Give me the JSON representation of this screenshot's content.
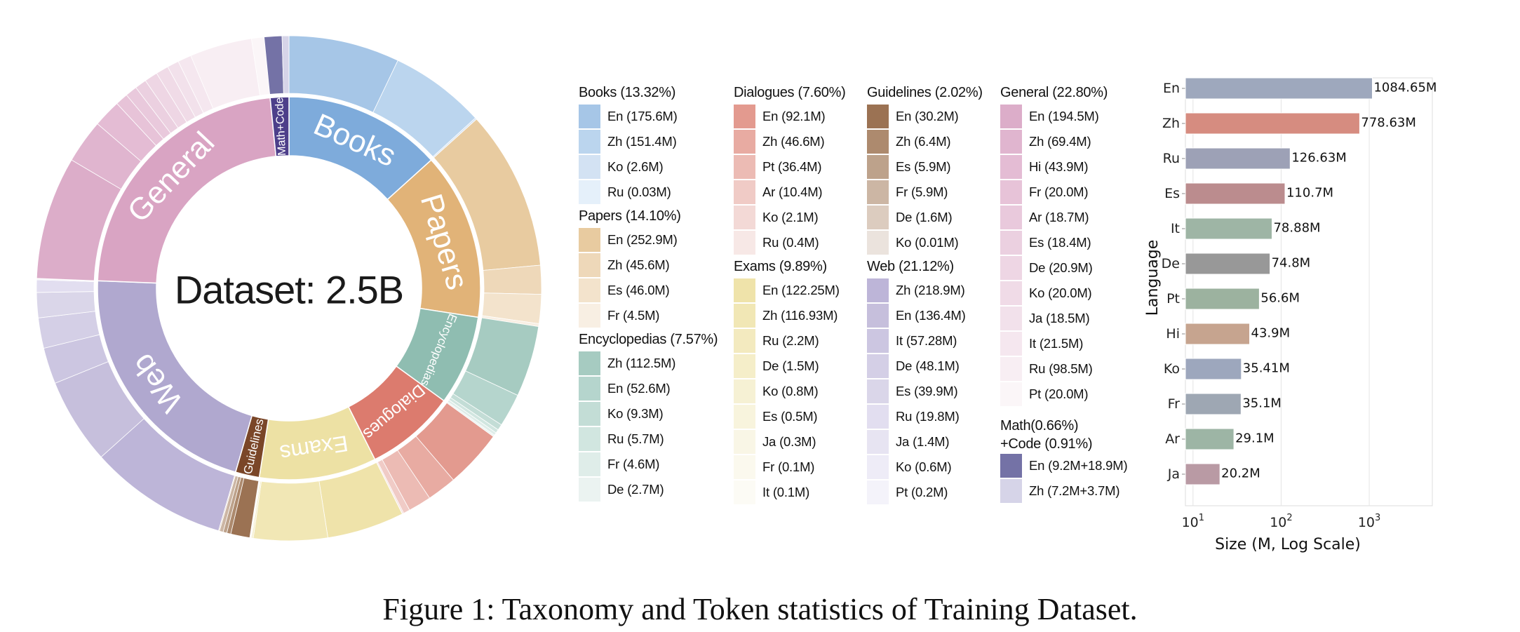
{
  "chart_data": [
    {
      "type": "sunburst",
      "center_label": "Dataset: 2.5B",
      "categories": [
        {
          "name": "Books",
          "ring_label": "Books",
          "legend_title": "Books (13.32%)",
          "shares": [
            13.32
          ],
          "color": "#7eabdb",
          "items": [
            {
              "label": "En (175.6M)",
              "values": [
                175.6
              ],
              "color": "#a6c6e7"
            },
            {
              "label": "Zh (151.4M)",
              "values": [
                151.4
              ],
              "color": "#bbd5ee"
            },
            {
              "label": "Ko (2.6M)",
              "values": [
                2.6
              ],
              "color": "#d3e2f3"
            },
            {
              "label": "Ru (0.03M)",
              "values": [
                0.03
              ],
              "color": "#e5f0fa"
            }
          ]
        },
        {
          "name": "Papers",
          "ring_label": "Papers",
          "legend_title": "Papers (14.10%)",
          "shares": [
            14.1
          ],
          "color": "#e1b378",
          "items": [
            {
              "label": "En (252.9M)",
              "values": [
                252.9
              ],
              "color": "#e8cba0"
            },
            {
              "label": "Zh (45.6M)",
              "values": [
                45.6
              ],
              "color": "#eed8b9"
            },
            {
              "label": "Es (46.0M)",
              "values": [
                46.0
              ],
              "color": "#f3e3cc"
            },
            {
              "label": "Fr (4.5M)",
              "values": [
                4.5
              ],
              "color": "#f8efe3"
            }
          ]
        },
        {
          "name": "Encyclopedias",
          "ring_label": "Encyclopedias",
          "legend_title": "Encyclopedias (7.57%)",
          "shares": [
            7.57
          ],
          "color": "#8fbdb1",
          "items": [
            {
              "label": "Zh (112.5M)",
              "values": [
                112.5
              ],
              "color": "#a6cbc1"
            },
            {
              "label": "En (52.6M)",
              "values": [
                52.6
              ],
              "color": "#b5d5cd"
            },
            {
              "label": "Ko (9.3M)",
              "values": [
                9.3
              ],
              "color": "#c3ddd6"
            },
            {
              "label": "Ru (5.7M)",
              "values": [
                5.7
              ],
              "color": "#d1e6e0"
            },
            {
              "label": "Fr (4.6M)",
              "values": [
                4.6
              ],
              "color": "#dfede9"
            },
            {
              "label": "De (2.7M)",
              "values": [
                2.7
              ],
              "color": "#ebf3f1"
            }
          ]
        },
        {
          "name": "Dialogues",
          "ring_label": "Dialogues",
          "legend_title": "Dialogues (7.60%)",
          "shares": [
            7.6
          ],
          "color": "#dc7b6e",
          "items": [
            {
              "label": "En (92.1M)",
              "values": [
                92.1
              ],
              "color": "#e39a8f"
            },
            {
              "label": "Zh (46.6M)",
              "values": [
                46.6
              ],
              "color": "#e8aba2"
            },
            {
              "label": "Pt (36.4M)",
              "values": [
                36.4
              ],
              "color": "#ecbbb4"
            },
            {
              "label": "Ar (10.4M)",
              "values": [
                10.4
              ],
              "color": "#f0cbc6"
            },
            {
              "label": "Ko (2.1M)",
              "values": [
                2.1
              ],
              "color": "#f3d9d6"
            },
            {
              "label": "Ru (0.4M)",
              "values": [
                0.4
              ],
              "color": "#f7e8e6"
            }
          ]
        },
        {
          "name": "Exams",
          "ring_label": "Exams",
          "legend_title": "Exams (9.89%)",
          "shares": [
            9.89
          ],
          "color": "#ede1a4",
          "items": [
            {
              "label": "En (122.25M)",
              "values": [
                122.25
              ],
              "color": "#efe3aa"
            },
            {
              "label": "Zh (116.93M)",
              "values": [
                116.93
              ],
              "color": "#f1e7b5"
            },
            {
              "label": "Ru (2.2M)",
              "values": [
                2.2
              ],
              "color": "#f3eabf"
            },
            {
              "label": "De (1.5M)",
              "values": [
                1.5
              ],
              "color": "#f5eec9"
            },
            {
              "label": "Ko (0.8M)",
              "values": [
                0.8
              ],
              "color": "#f6f1d4"
            },
            {
              "label": "Es (0.5M)",
              "values": [
                0.5
              ],
              "color": "#f8f4dd"
            },
            {
              "label": "Ja (0.3M)",
              "values": [
                0.3
              ],
              "color": "#f9f6e6"
            },
            {
              "label": "Fr (0.1M)",
              "values": [
                0.1
              ],
              "color": "#fbf9ee"
            },
            {
              "label": "It (0.1M)",
              "values": [
                0.1
              ],
              "color": "#fcfbf5"
            }
          ]
        },
        {
          "name": "Guidelines",
          "ring_label": "Guidelines",
          "legend_title": "Guidelines (2.02%)",
          "shares": [
            2.02
          ],
          "color": "#7a4628",
          "items": [
            {
              "label": "En (30.2M)",
              "values": [
                30.2
              ],
              "color": "#9b7253"
            },
            {
              "label": "Zh (6.4M)",
              "values": [
                6.4
              ],
              "color": "#ad8a6e"
            },
            {
              "label": "Es (5.9M)",
              "values": [
                5.9
              ],
              "color": "#bda28b"
            },
            {
              "label": "Fr (5.9M)",
              "values": [
                5.9
              ],
              "color": "#ccb6a4"
            },
            {
              "label": "De (1.6M)",
              "values": [
                1.6
              ],
              "color": "#dcccbf"
            },
            {
              "label": "Ko (0.01M)",
              "values": [
                0.01
              ],
              "color": "#ebe3dd"
            }
          ]
        },
        {
          "name": "Web",
          "ring_label": "Web",
          "legend_title": "Web (21.12%)",
          "shares": [
            21.12
          ],
          "color": "#b0a8cf",
          "items": [
            {
              "label": "Zh (218.9M)",
              "values": [
                218.9
              ],
              "color": "#bdb5d8"
            },
            {
              "label": "En (136.4M)",
              "values": [
                136.4
              ],
              "color": "#c6bfdc"
            },
            {
              "label": "It (57.28M)",
              "values": [
                57.28
              ],
              "color": "#ccc6e1"
            },
            {
              "label": "De (48.1M)",
              "values": [
                48.1
              ],
              "color": "#d4cfe6"
            },
            {
              "label": "Es (39.9M)",
              "values": [
                39.9
              ],
              "color": "#dad6e9"
            },
            {
              "label": "Ru (19.8M)",
              "values": [
                19.8
              ],
              "color": "#e2def0"
            },
            {
              "label": "Ja (1.4M)",
              "values": [
                1.4
              ],
              "color": "#e7e4f2"
            },
            {
              "label": "Ko (0.6M)",
              "values": [
                0.6
              ],
              "color": "#eeecf7"
            },
            {
              "label": "Pt (0.2M)",
              "values": [
                0.2
              ],
              "color": "#f4f3fa"
            }
          ]
        },
        {
          "name": "General",
          "ring_label": "General",
          "legend_title": "General (22.80%)",
          "shares": [
            22.8
          ],
          "color": "#d9a4c3",
          "items": [
            {
              "label": "En (194.5M)",
              "values": [
                194.5
              ],
              "color": "#dcadc9"
            },
            {
              "label": "Zh (69.4M)",
              "values": [
                69.4
              ],
              "color": "#e0b5cf"
            },
            {
              "label": "Hi (43.9M)",
              "values": [
                43.9
              ],
              "color": "#e4bcd4"
            },
            {
              "label": "Fr (20.0M)",
              "values": [
                20.0
              ],
              "color": "#e7c3d8"
            },
            {
              "label": "Ar (18.7M)",
              "values": [
                18.7
              ],
              "color": "#e9c9dc"
            },
            {
              "label": "Es (18.4M)",
              "values": [
                18.4
              ],
              "color": "#ebd0e0"
            },
            {
              "label": "De (20.9M)",
              "values": [
                20.9
              ],
              "color": "#eed6e4"
            },
            {
              "label": "Ko (20.0M)",
              "values": [
                20.0
              ],
              "color": "#f0dbe7"
            },
            {
              "label": "Ja (18.5M)",
              "values": [
                18.5
              ],
              "color": "#f2e1eb"
            },
            {
              "label": "It (21.5M)",
              "values": [
                21.5
              ],
              "color": "#f5e7ef"
            },
            {
              "label": "Ru (98.5M)",
              "values": [
                98.5
              ],
              "color": "#f8eef3"
            },
            {
              "label": "Pt (20.0M)",
              "values": [
                20.0
              ],
              "color": "#fbf6f8"
            }
          ]
        },
        {
          "name": "Math+Code",
          "ring_label": "Math+Code",
          "legend_title": "Math(0.66%)",
          "legend_title_2": "+Code (0.91%)",
          "shares": [
            0.66,
            0.91
          ],
          "color": "#4d3f8a",
          "items": [
            {
              "label": "En (9.2M+18.9M)",
              "values": [
                9.2,
                18.9
              ],
              "color": "#7472a6"
            },
            {
              "label": "Zh (7.2M+3.7M)",
              "values": [
                7.2,
                3.7
              ],
              "color": "#d6d4e8"
            }
          ]
        }
      ]
    },
    {
      "type": "bar",
      "orientation": "horizontal",
      "xlabel": "Size (M, Log Scale)",
      "ylabel": "Language",
      "x_scale": "log",
      "xlim": [
        8.2,
        5200
      ],
      "x_ticks": [
        {
          "value": 10,
          "base": "10",
          "exp": "1"
        },
        {
          "value": 100,
          "base": "10",
          "exp": "2"
        },
        {
          "value": 1000,
          "base": "10",
          "exp": "3"
        }
      ],
      "grid": "vertical",
      "categories": [
        "En",
        "Zh",
        "Ru",
        "Es",
        "It",
        "De",
        "Pt",
        "Hi",
        "Ko",
        "Fr",
        "Ar",
        "Ja"
      ],
      "values": [
        1084.65,
        778.63,
        126.63,
        110.7,
        78.88,
        74.8,
        56.6,
        43.9,
        35.41,
        35.1,
        29.1,
        20.2
      ],
      "data_labels": [
        "1084.65M",
        "778.63M",
        "126.63M",
        "110.7M",
        "78.88M",
        "74.8M",
        "56.6M",
        "43.9M",
        "35.41M",
        "35.1M",
        "29.1M",
        "20.2M"
      ],
      "colors": [
        "#9ea8bd",
        "#d68c80",
        "#9da1b6",
        "#bb8c8e",
        "#9eb5a5",
        "#989898",
        "#9cb29f",
        "#c6a48f",
        "#9da7bd",
        "#9ea7b3",
        "#9db5a5",
        "#b99aa4"
      ]
    }
  ],
  "caption": "Figure 1: Taxonomy and Token statistics of Training Dataset."
}
